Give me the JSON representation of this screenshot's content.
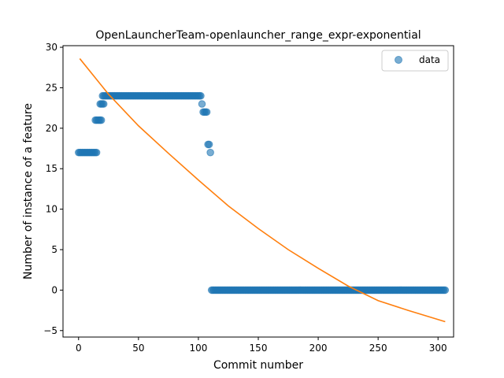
{
  "chart_data": {
    "type": "scatter",
    "title": "OpenLauncherTeam-openlauncher_range_expr-exponential",
    "xlabel": "Commit number",
    "ylabel": "Number of instance of a feature",
    "xlim": [
      -13,
      313
    ],
    "ylim": [
      -5.8,
      30.2
    ],
    "xticks": [
      0,
      50,
      100,
      150,
      200,
      250,
      300
    ],
    "yticks": [
      -5,
      0,
      5,
      10,
      15,
      20,
      25,
      30
    ],
    "grid": false,
    "legend": {
      "position": "upper right",
      "entries": [
        "data"
      ]
    },
    "colors": {
      "data": "#1f77b4",
      "fit": "#ff7f0e"
    },
    "series": [
      {
        "name": "data",
        "kind": "scatter",
        "segments": [
          {
            "x_start": 0,
            "x_end": 15,
            "y": 17
          },
          {
            "x_start": 14,
            "x_end": 19,
            "y": 21
          },
          {
            "x_start": 18,
            "x_end": 21,
            "y": 23
          },
          {
            "x_start": 20,
            "x_end": 102,
            "y": 24
          },
          {
            "x_start": 103,
            "x_end": 103,
            "y": 23
          },
          {
            "x_start": 104,
            "x_end": 107,
            "y": 22
          },
          {
            "x_start": 108,
            "x_end": 109,
            "y": 18
          },
          {
            "x_start": 110,
            "x_end": 110,
            "y": 17
          },
          {
            "x_start": 111,
            "x_end": 306,
            "y": 0
          }
        ]
      },
      {
        "kind": "line",
        "x": [
          1,
          25,
          50,
          75,
          100,
          125,
          150,
          175,
          200,
          225,
          250,
          275,
          306
        ],
        "y": [
          28.6,
          24.2,
          20.3,
          16.9,
          13.6,
          10.4,
          7.6,
          5.0,
          2.7,
          0.5,
          -1.3,
          -2.5,
          -3.9
        ]
      }
    ]
  }
}
